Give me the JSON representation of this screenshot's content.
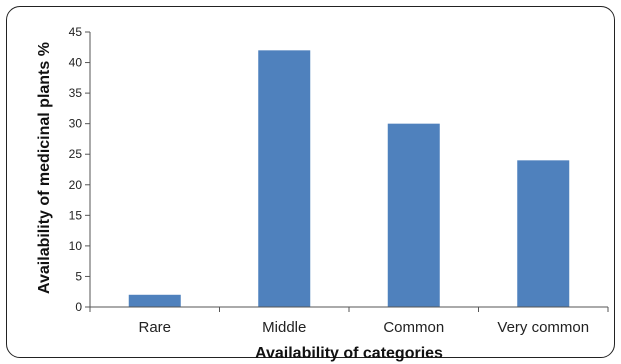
{
  "chart_data": {
    "type": "bar",
    "categories": [
      "Rare",
      "Middle",
      "Common",
      "Very common"
    ],
    "values": [
      2,
      42,
      30,
      24
    ],
    "title": "",
    "xlabel": "Availability of categories",
    "ylabel": "Availability of medicinal plants %",
    "ylim": [
      0,
      45
    ],
    "yticks": [
      0,
      5,
      10,
      15,
      20,
      25,
      30,
      35,
      40,
      45
    ],
    "grid": false,
    "legend": "none",
    "bar_color": "#4f81bd"
  }
}
